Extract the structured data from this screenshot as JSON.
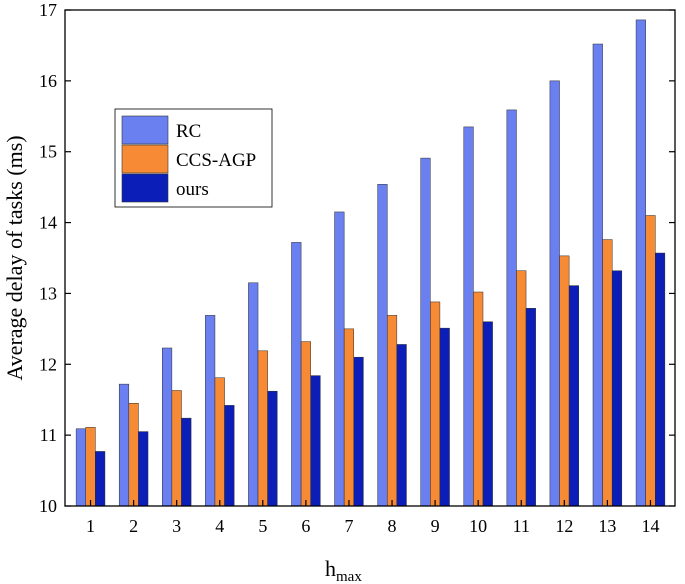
{
  "chart_data": {
    "type": "bar",
    "title": "",
    "xlabel": "h",
    "xlabel_sub": "max",
    "ylabel": "Average delay of tasks (ms)",
    "ylim": [
      10,
      17
    ],
    "yticks": [
      "10",
      "11",
      "12",
      "13",
      "14",
      "15",
      "16",
      "17"
    ],
    "grid": false,
    "legend_position": "upper-left",
    "categories": [
      "1",
      "2",
      "3",
      "4",
      "5",
      "6",
      "7",
      "8",
      "9",
      "10",
      "11",
      "12",
      "13",
      "14"
    ],
    "series": [
      {
        "name": "RC",
        "color": "#6a80f0",
        "values": [
          11.09,
          11.72,
          12.23,
          12.69,
          13.15,
          13.72,
          14.15,
          14.54,
          14.91,
          15.35,
          15.59,
          16.0,
          16.52,
          16.86
        ]
      },
      {
        "name": "CCS-AGP",
        "color": "#f78a34",
        "values": [
          11.11,
          11.45,
          11.63,
          11.81,
          12.19,
          12.32,
          12.5,
          12.69,
          12.88,
          13.02,
          13.32,
          13.53,
          13.76,
          14.1
        ]
      },
      {
        "name": "ours",
        "color": "#0b1fb8",
        "values": [
          10.77,
          11.05,
          11.24,
          11.42,
          11.62,
          11.84,
          12.1,
          12.28,
          12.51,
          12.6,
          12.79,
          13.11,
          13.32,
          13.57
        ]
      }
    ]
  }
}
